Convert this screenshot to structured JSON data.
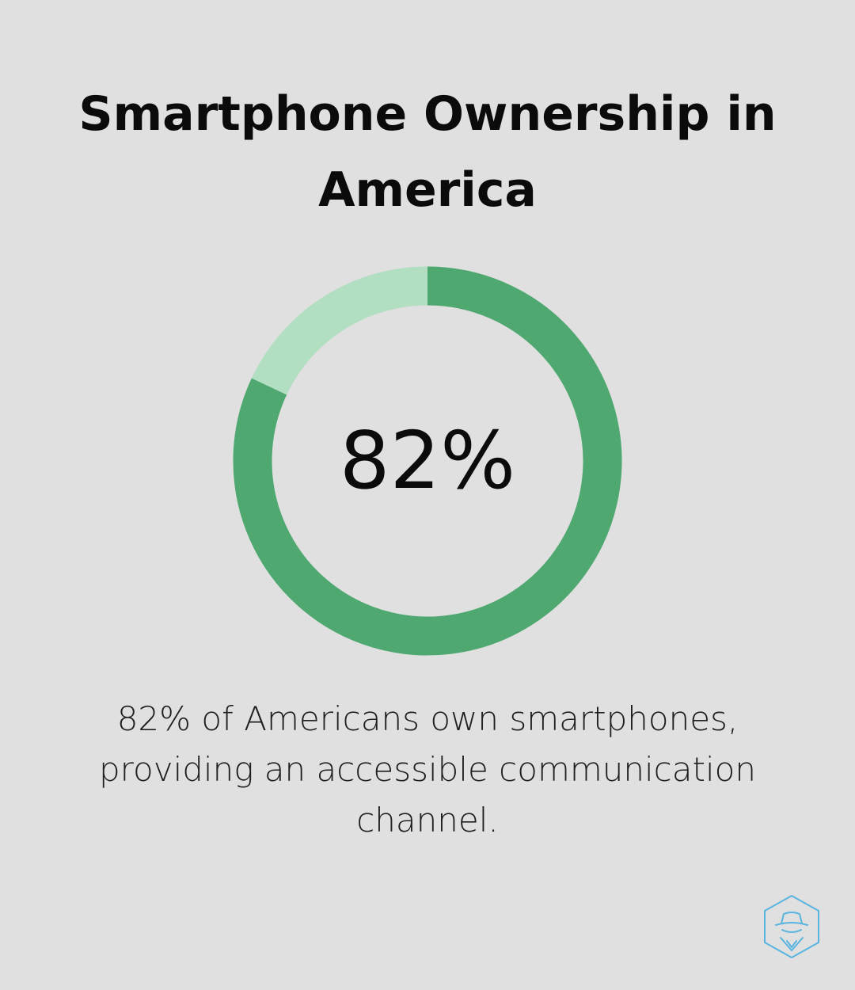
{
  "title": "Smartphone Ownership in America",
  "chart_data": {
    "type": "pie",
    "style": "donut",
    "center_label": "82%",
    "slices": [
      {
        "value": 82,
        "color": "#4fa870"
      },
      {
        "value": 18,
        "color": "#b2dec2"
      }
    ]
  },
  "caption": "82% of Americans own smartphones, providing an accessible communication channel.",
  "logo": {
    "icon": "spy-hexagon-logo-icon",
    "color": "#5ab4e0"
  }
}
